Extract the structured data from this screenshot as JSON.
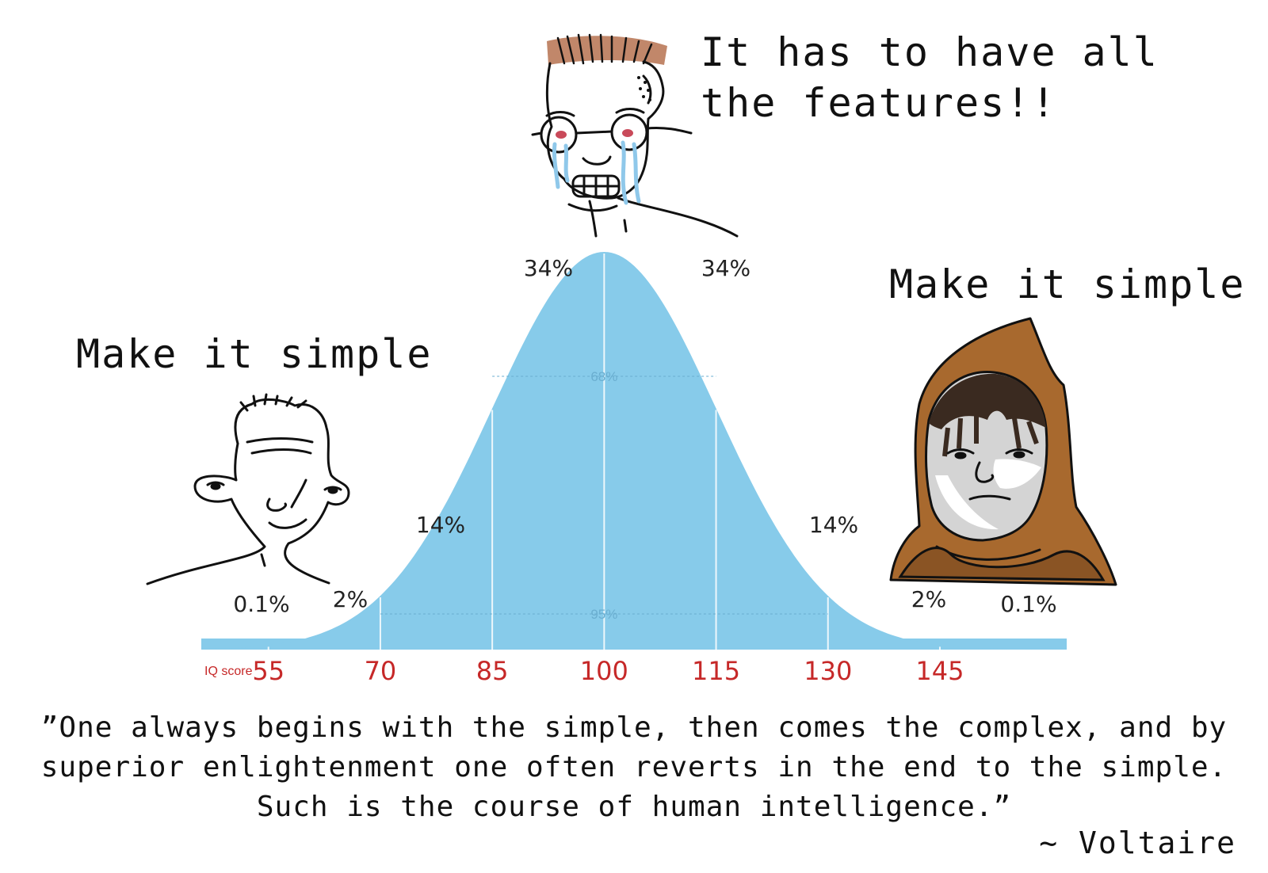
{
  "captions": {
    "left": "Make it simple",
    "top": "It has to have all the features!!",
    "right": "Make it simple"
  },
  "quote": {
    "text": "”One always begins with the simple, then comes the complex, and by superior enlightenment one often reverts in the end to the simple. Such is the course of human intelligence.”",
    "author": "~ Voltaire"
  },
  "chart_data": {
    "type": "area",
    "distribution": "normal",
    "mean": 100,
    "sd": 15,
    "xlabel": "IQ score",
    "xlim": [
      46,
      162
    ],
    "x_ticks": [
      55,
      70,
      85,
      100,
      115,
      130,
      145
    ],
    "bands": [
      {
        "range": [
          40,
          55
        ],
        "label": "0.1%"
      },
      {
        "range": [
          55,
          70
        ],
        "label": "2%"
      },
      {
        "range": [
          70,
          85
        ],
        "label": "14%"
      },
      {
        "range": [
          85,
          100
        ],
        "label": "34%"
      },
      {
        "range": [
          100,
          115
        ],
        "label": "34%"
      },
      {
        "range": [
          115,
          130
        ],
        "label": "14%"
      },
      {
        "range": [
          130,
          145
        ],
        "label": "2%"
      },
      {
        "range": [
          145,
          160
        ],
        "label": "0.1%"
      }
    ],
    "inner_annotations": [
      {
        "range": [
          85,
          115
        ],
        "label": "68%"
      },
      {
        "range": [
          70,
          130
        ],
        "label": "95%"
      }
    ],
    "fill_color": "#87cbea",
    "tick_color": "#c62828"
  },
  "characters": [
    {
      "name": "low-iq-wojak",
      "position": "left"
    },
    {
      "name": "crying-nerd-wojak",
      "position": "top"
    },
    {
      "name": "hooded-monk-wojak",
      "position": "right"
    }
  ]
}
